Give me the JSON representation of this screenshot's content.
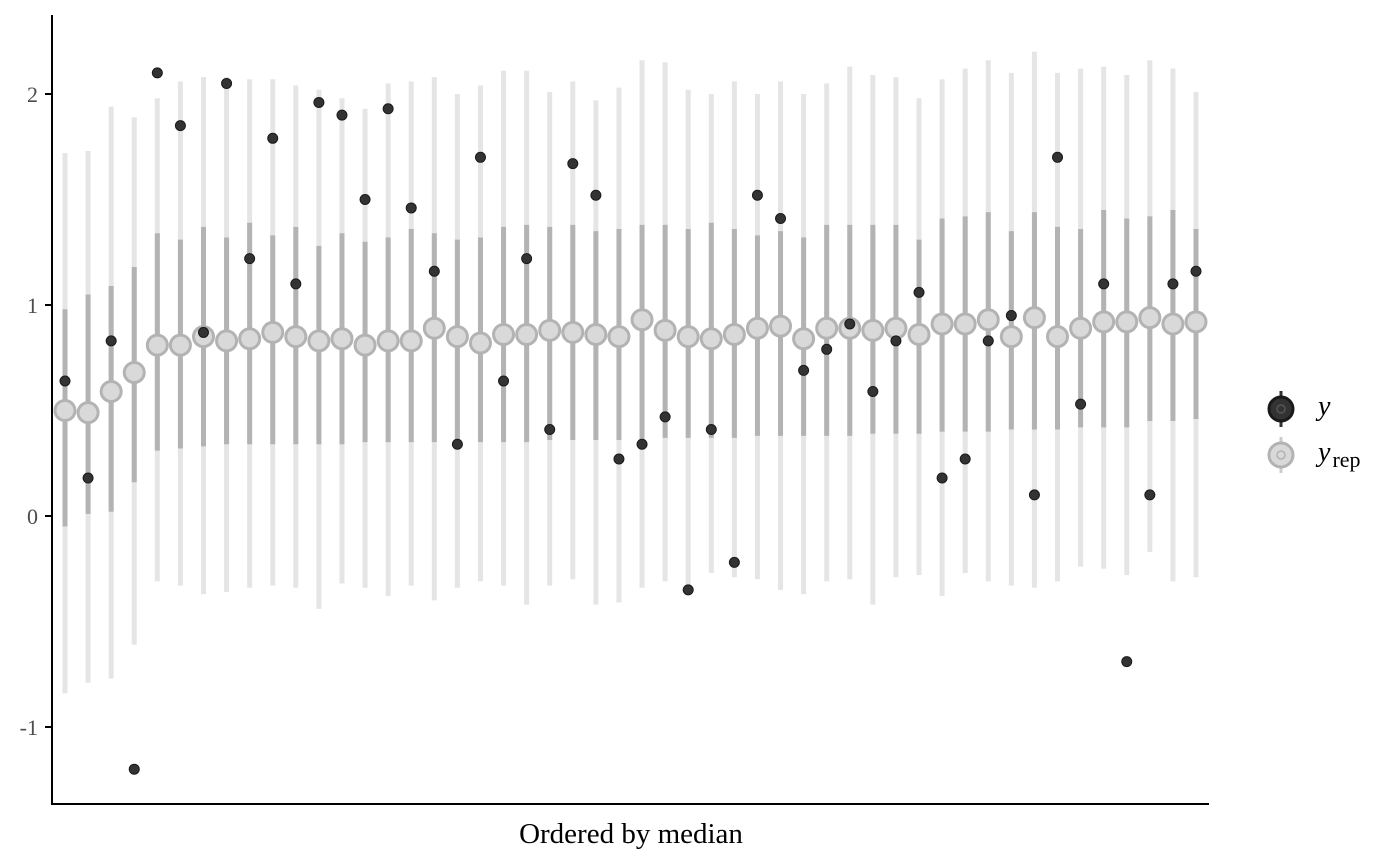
{
  "chart_data": {
    "type": "ppc_intervals",
    "title": "",
    "xlabel": "Ordered by median",
    "ylabel": "",
    "ylim": [
      -1.37,
      2.37
    ],
    "y_ticks": [
      -1,
      0,
      1,
      2
    ],
    "y_tick_labels": [
      "-1",
      "0",
      "1",
      "2"
    ],
    "x_ticks_shown": false,
    "grid": false,
    "legend": {
      "placement": "right",
      "entries": [
        {
          "symbol": "y",
          "label": "y",
          "sub": ""
        },
        {
          "symbol": "yrep",
          "label": "y",
          "sub": "rep"
        }
      ]
    },
    "colors": {
      "y_point_fill": "#333333",
      "y_point_stroke": "#1a1a1a",
      "inner_interval": "#b3b3b3",
      "outer_interval": "#e5e5e5",
      "median_fill": "#d9d9d9",
      "median_stroke": "#b3b3b3",
      "axis": "#000000"
    },
    "observations": [
      {
        "index": 1,
        "y": 0.64,
        "median": 0.5,
        "inner": [
          -0.05,
          0.98
        ],
        "outer": [
          -0.84,
          1.72
        ]
      },
      {
        "index": 2,
        "y": 0.18,
        "median": 0.49,
        "inner": [
          0.01,
          1.05
        ],
        "outer": [
          -0.79,
          1.73
        ]
      },
      {
        "index": 3,
        "y": 0.83,
        "median": 0.59,
        "inner": [
          0.02,
          1.09
        ],
        "outer": [
          -0.77,
          1.94
        ]
      },
      {
        "index": 4,
        "y": -1.2,
        "median": 0.68,
        "inner": [
          0.16,
          1.18
        ],
        "outer": [
          -0.61,
          1.89
        ]
      },
      {
        "index": 5,
        "y": 2.1,
        "median": 0.81,
        "inner": [
          0.31,
          1.34
        ],
        "outer": [
          -0.31,
          1.98
        ]
      },
      {
        "index": 6,
        "y": 1.85,
        "median": 0.81,
        "inner": [
          0.32,
          1.31
        ],
        "outer": [
          -0.33,
          2.06
        ]
      },
      {
        "index": 7,
        "y": 0.87,
        "median": 0.85,
        "inner": [
          0.33,
          1.37
        ],
        "outer": [
          -0.37,
          2.08
        ]
      },
      {
        "index": 8,
        "y": 2.05,
        "median": 0.83,
        "inner": [
          0.34,
          1.32
        ],
        "outer": [
          -0.36,
          2.08
        ]
      },
      {
        "index": 9,
        "y": 1.22,
        "median": 0.84,
        "inner": [
          0.34,
          1.39
        ],
        "outer": [
          -0.34,
          2.07
        ]
      },
      {
        "index": 10,
        "y": 1.79,
        "median": 0.87,
        "inner": [
          0.34,
          1.33
        ],
        "outer": [
          -0.33,
          2.07
        ]
      },
      {
        "index": 11,
        "y": 1.1,
        "median": 0.85,
        "inner": [
          0.34,
          1.37
        ],
        "outer": [
          -0.34,
          2.04
        ]
      },
      {
        "index": 12,
        "y": 1.96,
        "median": 0.83,
        "inner": [
          0.34,
          1.28
        ],
        "outer": [
          -0.44,
          2.02
        ]
      },
      {
        "index": 13,
        "y": 1.9,
        "median": 0.84,
        "inner": [
          0.34,
          1.34
        ],
        "outer": [
          -0.32,
          1.98
        ]
      },
      {
        "index": 14,
        "y": 1.5,
        "median": 0.81,
        "inner": [
          0.35,
          1.3
        ],
        "outer": [
          -0.34,
          1.93
        ]
      },
      {
        "index": 15,
        "y": 1.93,
        "median": 0.83,
        "inner": [
          0.35,
          1.32
        ],
        "outer": [
          -0.38,
          2.05
        ]
      },
      {
        "index": 16,
        "y": 1.46,
        "median": 0.83,
        "inner": [
          0.35,
          1.36
        ],
        "outer": [
          -0.33,
          2.06
        ]
      },
      {
        "index": 17,
        "y": 1.16,
        "median": 0.89,
        "inner": [
          0.35,
          1.34
        ],
        "outer": [
          -0.4,
          2.08
        ]
      },
      {
        "index": 18,
        "y": 0.34,
        "median": 0.85,
        "inner": [
          0.35,
          1.31
        ],
        "outer": [
          -0.34,
          2.0
        ]
      },
      {
        "index": 19,
        "y": 1.7,
        "median": 0.82,
        "inner": [
          0.35,
          1.32
        ],
        "outer": [
          -0.31,
          2.04
        ]
      },
      {
        "index": 20,
        "y": 0.64,
        "median": 0.86,
        "inner": [
          0.35,
          1.37
        ],
        "outer": [
          -0.33,
          2.11
        ]
      },
      {
        "index": 21,
        "y": 1.22,
        "median": 0.86,
        "inner": [
          0.35,
          1.38
        ],
        "outer": [
          -0.42,
          2.11
        ]
      },
      {
        "index": 22,
        "y": 0.41,
        "median": 0.88,
        "inner": [
          0.36,
          1.37
        ],
        "outer": [
          -0.33,
          2.01
        ]
      },
      {
        "index": 23,
        "y": 1.67,
        "median": 0.87,
        "inner": [
          0.36,
          1.38
        ],
        "outer": [
          -0.3,
          2.06
        ]
      },
      {
        "index": 24,
        "y": 1.52,
        "median": 0.86,
        "inner": [
          0.36,
          1.35
        ],
        "outer": [
          -0.42,
          1.97
        ]
      },
      {
        "index": 25,
        "y": 0.27,
        "median": 0.85,
        "inner": [
          0.36,
          1.36
        ],
        "outer": [
          -0.41,
          2.03
        ]
      },
      {
        "index": 26,
        "y": 0.34,
        "median": 0.93,
        "inner": [
          0.36,
          1.38
        ],
        "outer": [
          -0.34,
          2.16
        ]
      },
      {
        "index": 27,
        "y": 0.47,
        "median": 0.88,
        "inner": [
          0.37,
          1.38
        ],
        "outer": [
          -0.31,
          2.15
        ]
      },
      {
        "index": 28,
        "y": -0.35,
        "median": 0.85,
        "inner": [
          0.37,
          1.36
        ],
        "outer": [
          -0.33,
          2.02
        ]
      },
      {
        "index": 29,
        "y": 0.41,
        "median": 0.84,
        "inner": [
          0.37,
          1.39
        ],
        "outer": [
          -0.27,
          2.0
        ]
      },
      {
        "index": 30,
        "y": -0.22,
        "median": 0.86,
        "inner": [
          0.37,
          1.36
        ],
        "outer": [
          -0.29,
          2.06
        ]
      },
      {
        "index": 31,
        "y": 1.52,
        "median": 0.89,
        "inner": [
          0.38,
          1.33
        ],
        "outer": [
          -0.3,
          2.0
        ]
      },
      {
        "index": 32,
        "y": 1.41,
        "median": 0.9,
        "inner": [
          0.38,
          1.35
        ],
        "outer": [
          -0.35,
          2.06
        ]
      },
      {
        "index": 33,
        "y": 0.69,
        "median": 0.84,
        "inner": [
          0.38,
          1.32
        ],
        "outer": [
          -0.37,
          2.0
        ]
      },
      {
        "index": 34,
        "y": 0.79,
        "median": 0.89,
        "inner": [
          0.38,
          1.38
        ],
        "outer": [
          -0.31,
          2.05
        ]
      },
      {
        "index": 35,
        "y": 0.91,
        "median": 0.89,
        "inner": [
          0.38,
          1.38
        ],
        "outer": [
          -0.3,
          2.13
        ]
      },
      {
        "index": 36,
        "y": 0.59,
        "median": 0.88,
        "inner": [
          0.39,
          1.38
        ],
        "outer": [
          -0.42,
          2.09
        ]
      },
      {
        "index": 37,
        "y": 0.83,
        "median": 0.89,
        "inner": [
          0.39,
          1.38
        ],
        "outer": [
          -0.29,
          2.08
        ]
      },
      {
        "index": 38,
        "y": 1.06,
        "median": 0.86,
        "inner": [
          0.39,
          1.31
        ],
        "outer": [
          -0.28,
          1.98
        ]
      },
      {
        "index": 39,
        "y": 0.18,
        "median": 0.91,
        "inner": [
          0.4,
          1.41
        ],
        "outer": [
          -0.38,
          2.07
        ]
      },
      {
        "index": 40,
        "y": 0.27,
        "median": 0.91,
        "inner": [
          0.4,
          1.42
        ],
        "outer": [
          -0.27,
          2.12
        ]
      },
      {
        "index": 41,
        "y": 0.83,
        "median": 0.93,
        "inner": [
          0.4,
          1.44
        ],
        "outer": [
          -0.31,
          2.16
        ]
      },
      {
        "index": 42,
        "y": 0.95,
        "median": 0.85,
        "inner": [
          0.41,
          1.35
        ],
        "outer": [
          -0.33,
          2.1
        ]
      },
      {
        "index": 43,
        "y": 0.1,
        "median": 0.94,
        "inner": [
          0.41,
          1.44
        ],
        "outer": [
          -0.34,
          2.2
        ]
      },
      {
        "index": 44,
        "y": 1.7,
        "median": 0.85,
        "inner": [
          0.41,
          1.37
        ],
        "outer": [
          -0.31,
          2.1
        ]
      },
      {
        "index": 45,
        "y": 0.53,
        "median": 0.89,
        "inner": [
          0.42,
          1.36
        ],
        "outer": [
          -0.24,
          2.12
        ]
      },
      {
        "index": 46,
        "y": 1.1,
        "median": 0.92,
        "inner": [
          0.42,
          1.45
        ],
        "outer": [
          -0.25,
          2.13
        ]
      },
      {
        "index": 47,
        "y": -0.69,
        "median": 0.92,
        "inner": [
          0.42,
          1.41
        ],
        "outer": [
          -0.28,
          2.09
        ]
      },
      {
        "index": 48,
        "y": 0.1,
        "median": 0.94,
        "inner": [
          0.45,
          1.42
        ],
        "outer": [
          -0.17,
          2.16
        ]
      },
      {
        "index": 49,
        "y": 1.1,
        "median": 0.91,
        "inner": [
          0.45,
          1.45
        ],
        "outer": [
          -0.31,
          2.12
        ]
      },
      {
        "index": 50,
        "y": 1.16,
        "median": 0.92,
        "inner": [
          0.46,
          1.36
        ],
        "outer": [
          -0.29,
          2.01
        ]
      }
    ]
  }
}
